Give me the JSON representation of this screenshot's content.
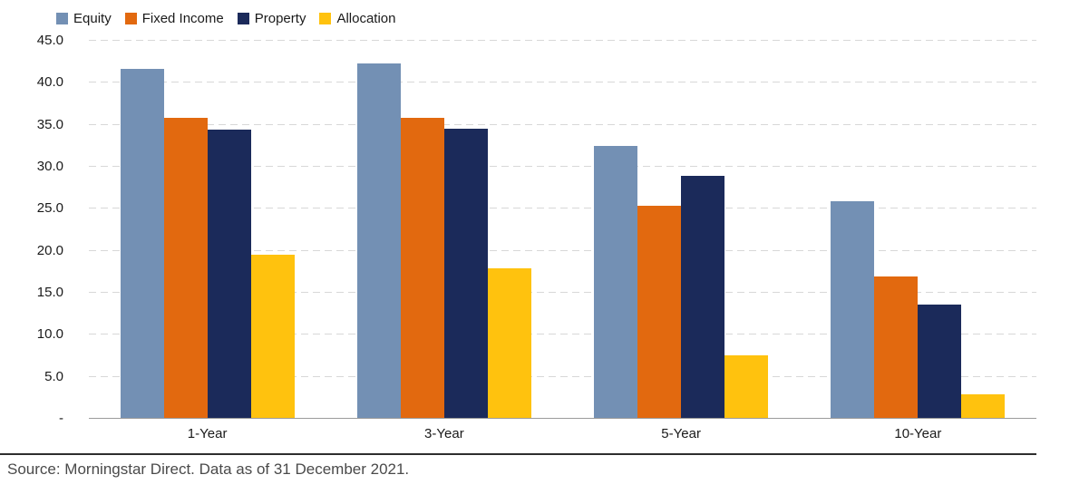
{
  "chart_data": {
    "type": "bar",
    "title": "",
    "categories": [
      "1-Year",
      "3-Year",
      "5-Year",
      "10-Year"
    ],
    "series": [
      {
        "name": "Equity",
        "color": "#7390B4",
        "values": [
          41.5,
          42.2,
          32.4,
          25.8
        ]
      },
      {
        "name": "Fixed Income",
        "color": "#E2690F",
        "values": [
          35.7,
          35.7,
          25.3,
          16.8
        ]
      },
      {
        "name": "Property",
        "color": "#1B2A5A",
        "values": [
          34.3,
          34.4,
          28.8,
          13.5
        ]
      },
      {
        "name": "Allocation",
        "color": "#FFC20E",
        "values": [
          19.4,
          17.8,
          7.5,
          2.8
        ]
      }
    ],
    "ylim": [
      0,
      45
    ],
    "ytick_step": 5,
    "ytick_labels": [
      "45.0",
      "40.0",
      "35.0",
      "30.0",
      "25.0",
      "20.0",
      "15.0",
      "10.0",
      "5.0",
      "-"
    ],
    "grid": "horizontal-dashed",
    "legend_position": "top-left",
    "axis_colors": {
      "gridline": "#d8d8d8",
      "baseline": "#9b9b9b",
      "divider": "#2e2e2e"
    }
  },
  "source_note": "Source: Morningstar Direct. Data as of 31 December 2021."
}
